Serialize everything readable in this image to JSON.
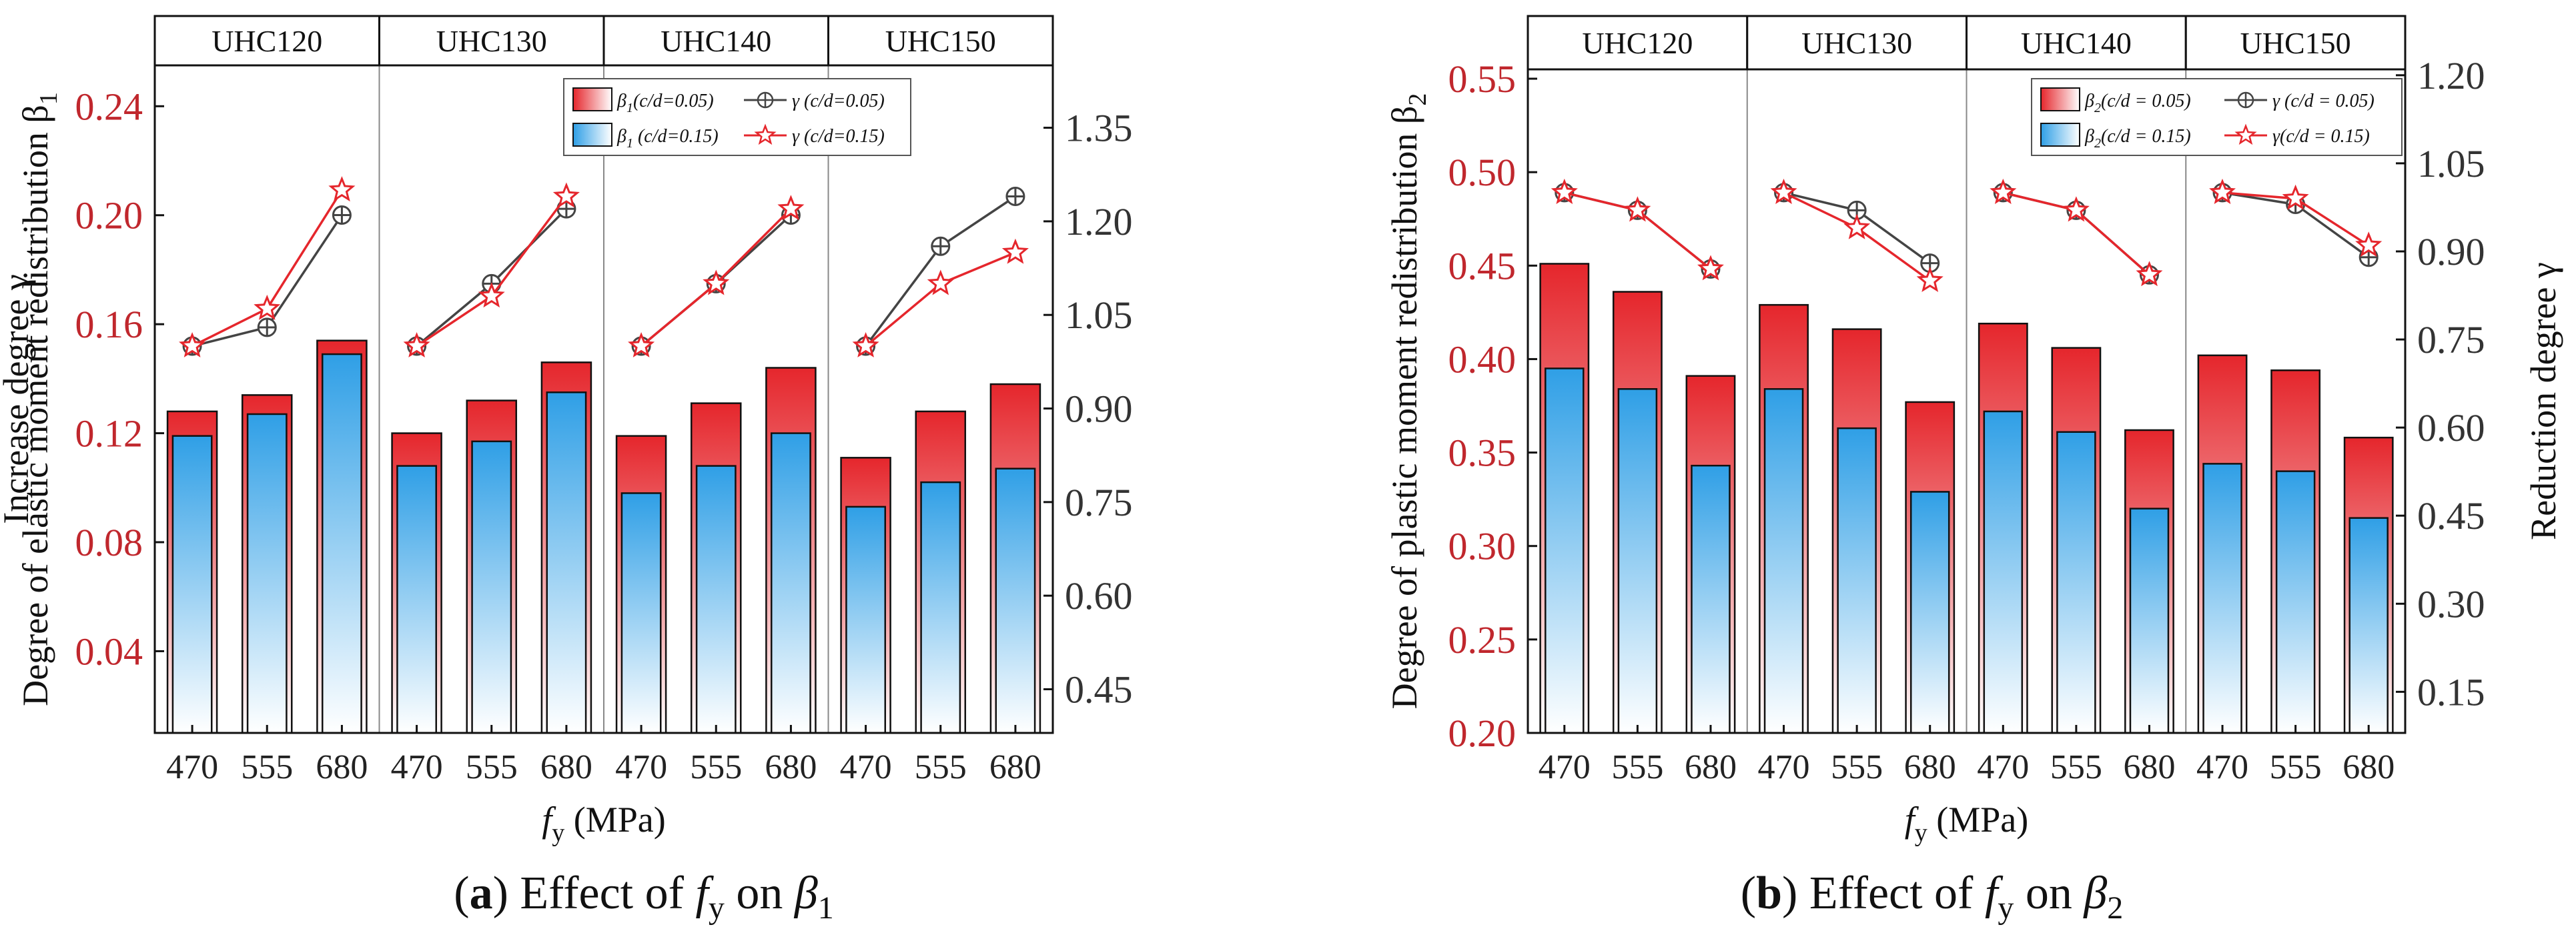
{
  "chart_data": [
    {
      "id": "a",
      "type": "bar+line",
      "groups": [
        "UHC120",
        "UHC130",
        "UHC140",
        "UHC150"
      ],
      "categories": [
        "470",
        "555",
        "680"
      ],
      "xlabel_main": "f",
      "xlabel_sub": "y",
      "xlabel_unit": " (MPa)",
      "ylabel_left": "Degree of elastic moment redistribution β",
      "ylabel_left_sub": "1",
      "ylabel_right": "Increase degree γ",
      "ylim_left": [
        0.01,
        0.255
      ],
      "ylim_right": [
        0.38,
        1.45
      ],
      "yticks_left": [
        "0.04",
        "0.08",
        "0.12",
        "0.16",
        "0.20",
        "0.24"
      ],
      "yticks_right": [
        "0.45",
        "0.60",
        "0.75",
        "0.90",
        "1.05",
        "1.20",
        "1.35"
      ],
      "bar_series": [
        {
          "name": "β1(c/d=0.05)",
          "color": "#e5262c",
          "values": [
            0.128,
            0.134,
            0.154,
            0.12,
            0.132,
            0.146,
            0.119,
            0.131,
            0.144,
            0.111,
            0.128,
            0.138
          ]
        },
        {
          "name": "β1 (c/d=0.15)",
          "color": "#2f9fe6",
          "values": [
            0.119,
            0.127,
            0.149,
            0.108,
            0.117,
            0.135,
            0.098,
            0.108,
            0.12,
            0.093,
            0.102,
            0.107
          ]
        }
      ],
      "line_series": [
        {
          "name": "γ (c/d=0.05)",
          "color": "#444444",
          "marker": "circle-plus",
          "values": [
            1.0,
            1.03,
            1.21,
            1.0,
            1.1,
            1.22,
            1.0,
            1.1,
            1.21,
            1.0,
            1.16,
            1.24
          ]
        },
        {
          "name": "γ (c/d=0.15)",
          "color": "#e5262c",
          "marker": "star",
          "values": [
            1.0,
            1.06,
            1.25,
            1.0,
            1.08,
            1.24,
            1.0,
            1.1,
            1.22,
            1.0,
            1.1,
            1.15
          ]
        }
      ],
      "legend": {
        "bar_05": {
          "sym": "β",
          "sub": "1",
          "rest": "(c/d=0.05)"
        },
        "line_05": "γ (c/d=0.05)",
        "bar_15": {
          "sym": "β",
          "sub": "1",
          "rest": " (c/d=0.15)"
        },
        "line_15": "γ (c/d=0.15)"
      },
      "caption": {
        "label": "a",
        "text": "Effect of ",
        "f": "f",
        "fsub": "y",
        "on": " on ",
        "beta": "β",
        "bsub": "1"
      }
    },
    {
      "id": "b",
      "type": "bar+line",
      "groups": [
        "UHC120",
        "UHC130",
        "UHC140",
        "UHC150"
      ],
      "categories": [
        "470",
        "555",
        "680"
      ],
      "xlabel_main": "f",
      "xlabel_sub": "y",
      "xlabel_unit": " (MPa)",
      "ylabel_left": "Degree of plastic moment redistribution β",
      "ylabel_left_sub": "2",
      "ylabel_right": "Reduction degree γ",
      "ylim_left": [
        0.2,
        0.555
      ],
      "ylim_right": [
        0.08,
        1.21
      ],
      "yticks_left": [
        "0.20",
        "0.25",
        "0.30",
        "0.35",
        "0.40",
        "0.45",
        "0.50",
        "0.55"
      ],
      "yticks_right": [
        "0.15",
        "0.30",
        "0.45",
        "0.60",
        "0.75",
        "0.90",
        "1.05",
        "1.20"
      ],
      "bar_series": [
        {
          "name": "β2(c/d = 0.05)",
          "color": "#e5262c",
          "values": [
            0.451,
            0.436,
            0.391,
            0.429,
            0.416,
            0.377,
            0.419,
            0.406,
            0.362,
            0.402,
            0.394,
            0.358
          ]
        },
        {
          "name": "β2(c/d = 0.15)",
          "color": "#2f9fe6",
          "values": [
            0.395,
            0.384,
            0.343,
            0.384,
            0.363,
            0.329,
            0.372,
            0.361,
            0.32,
            0.344,
            0.34,
            0.315
          ]
        }
      ],
      "line_series": [
        {
          "name": "γ (c/d = 0.05)",
          "color": "#444444",
          "marker": "circle-plus",
          "values": [
            1.0,
            0.97,
            0.87,
            1.0,
            0.97,
            0.88,
            1.0,
            0.97,
            0.86,
            1.0,
            0.98,
            0.89
          ]
        },
        {
          "name": "γ(c/d = 0.15)",
          "color": "#e5262c",
          "marker": "star",
          "values": [
            1.0,
            0.97,
            0.87,
            1.0,
            0.94,
            0.85,
            1.0,
            0.97,
            0.86,
            1.0,
            0.99,
            0.91
          ]
        }
      ],
      "legend": {
        "bar_05": {
          "sym": "β",
          "sub": "2",
          "rest": "(c/d = 0.05)"
        },
        "line_05": "γ (c/d = 0.05)",
        "bar_15": {
          "sym": "β",
          "sub": "2",
          "rest": "(c/d = 0.15)"
        },
        "line_15": "γ(c/d = 0.15)"
      },
      "caption": {
        "label": "b",
        "text": "Effect of ",
        "f": "f",
        "fsub": "y",
        "on": " on ",
        "beta": "β",
        "bsub": "2"
      }
    }
  ]
}
